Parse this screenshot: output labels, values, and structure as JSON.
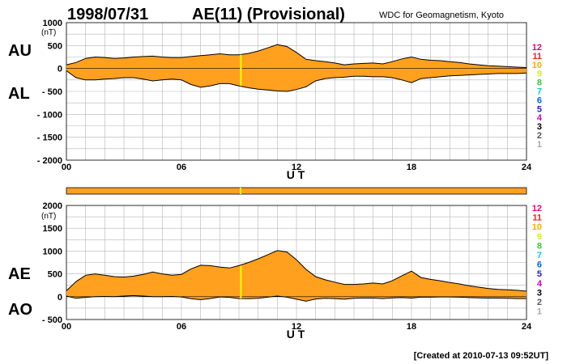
{
  "header": {
    "date": "1998/07/31",
    "title": "AE(11) (Provisional)",
    "source": "WDC for Geomagnetism, Kyoto"
  },
  "footer": {
    "created": "[Created at 2010-07-13 09:52UT]"
  },
  "colors": {
    "fill": "#ffa01e",
    "outline": "#000000",
    "grid": "#b4b4b4",
    "marker": "#ffff00",
    "station_colors": [
      "#aaaaaa",
      "#555555",
      "#000000",
      "#cc00cc",
      "#2222cc",
      "#0066ee",
      "#00ccdd",
      "#33cc33",
      "#ccee22",
      "#ffaa00",
      "#ee2222",
      "#ee0077"
    ]
  },
  "station_labels": [
    "12",
    "11",
    "10",
    "9",
    "8",
    "7",
    "6",
    "5",
    "4",
    "3",
    "2",
    "1"
  ],
  "chart_data": [
    {
      "type": "area",
      "panel": "AU/AL",
      "label_upper": "AU",
      "label_lower": "AL",
      "unit": "(nT)",
      "xlabel": "U T",
      "xlim": [
        0,
        24
      ],
      "ylim": [
        -2000,
        1000
      ],
      "xticks": [
        "00",
        "06",
        "12",
        "18",
        "24"
      ],
      "yticks": [
        "1000",
        "500",
        "0",
        "- 500",
        "- 1000",
        "- 1500",
        "- 2000"
      ],
      "x": [
        0,
        0.5,
        1,
        1.5,
        2,
        2.5,
        3,
        3.5,
        4,
        4.5,
        5,
        5.5,
        6,
        6.5,
        7,
        7.5,
        8,
        8.5,
        9,
        9.5,
        10,
        10.5,
        11,
        11.5,
        12,
        12.5,
        13,
        13.5,
        14,
        14.5,
        15,
        15.5,
        16,
        16.5,
        17,
        17.5,
        18,
        18.5,
        19,
        19.5,
        20,
        20.5,
        21,
        21.5,
        22,
        22.5,
        23,
        23.5,
        24
      ],
      "series": [
        {
          "name": "AU",
          "values": [
            80,
            130,
            220,
            250,
            240,
            220,
            230,
            250,
            260,
            270,
            250,
            240,
            240,
            260,
            280,
            300,
            320,
            300,
            300,
            330,
            380,
            450,
            520,
            480,
            350,
            200,
            170,
            150,
            120,
            80,
            100,
            110,
            120,
            100,
            150,
            210,
            250,
            200,
            180,
            170,
            150,
            130,
            100,
            80,
            60,
            50,
            40,
            30,
            20
          ]
        },
        {
          "name": "AL",
          "values": [
            -50,
            -200,
            -250,
            -250,
            -230,
            -220,
            -200,
            -200,
            -230,
            -270,
            -250,
            -230,
            -250,
            -350,
            -410,
            -380,
            -330,
            -330,
            -380,
            -420,
            -450,
            -470,
            -490,
            -500,
            -460,
            -400,
            -270,
            -220,
            -200,
            -190,
            -170,
            -170,
            -180,
            -180,
            -200,
            -250,
            -310,
            -220,
            -200,
            -180,
            -160,
            -150,
            -140,
            -130,
            -120,
            -110,
            -110,
            -110,
            -100
          ]
        }
      ],
      "marker_x": 9.1
    },
    {
      "type": "area",
      "panel": "AE/AO",
      "label_upper": "AE",
      "label_lower": "AO",
      "unit": "(nT)",
      "xlabel": "U T",
      "xlim": [
        0,
        24
      ],
      "ylim": [
        -500,
        2000
      ],
      "xticks": [
        "00",
        "06",
        "12",
        "18",
        "24"
      ],
      "yticks": [
        "2000",
        "1500",
        "1000",
        "500",
        "0",
        "- 500"
      ],
      "x": [
        0,
        0.5,
        1,
        1.5,
        2,
        2.5,
        3,
        3.5,
        4,
        4.5,
        5,
        5.5,
        6,
        6.5,
        7,
        7.5,
        8,
        8.5,
        9,
        9.5,
        10,
        10.5,
        11,
        11.5,
        12,
        12.5,
        13,
        13.5,
        14,
        14.5,
        15,
        15.5,
        16,
        16.5,
        17,
        17.5,
        18,
        18.5,
        19,
        19.5,
        20,
        20.5,
        21,
        21.5,
        22,
        22.5,
        23,
        23.5,
        24
      ],
      "series": [
        {
          "name": "AE",
          "values": [
            130,
            330,
            470,
            500,
            470,
            440,
            430,
            450,
            490,
            540,
            500,
            470,
            490,
            610,
            690,
            680,
            650,
            630,
            680,
            750,
            830,
            920,
            1010,
            980,
            810,
            600,
            440,
            370,
            320,
            270,
            270,
            280,
            300,
            280,
            350,
            460,
            560,
            420,
            380,
            350,
            310,
            280,
            240,
            210,
            180,
            160,
            150,
            140,
            120
          ]
        },
        {
          "name": "AO",
          "values": [
            15,
            -35,
            -15,
            0,
            5,
            0,
            15,
            25,
            15,
            0,
            0,
            5,
            -5,
            -45,
            -65,
            -40,
            -5,
            -15,
            -40,
            -45,
            -35,
            -10,
            15,
            -10,
            -55,
            -100,
            -50,
            -35,
            -40,
            -55,
            -35,
            -30,
            -30,
            -40,
            -25,
            -20,
            -30,
            -10,
            -10,
            -5,
            -5,
            -10,
            -20,
            -25,
            -30,
            -30,
            -35,
            -40,
            -40
          ]
        }
      ],
      "marker_x": 9.1
    }
  ]
}
